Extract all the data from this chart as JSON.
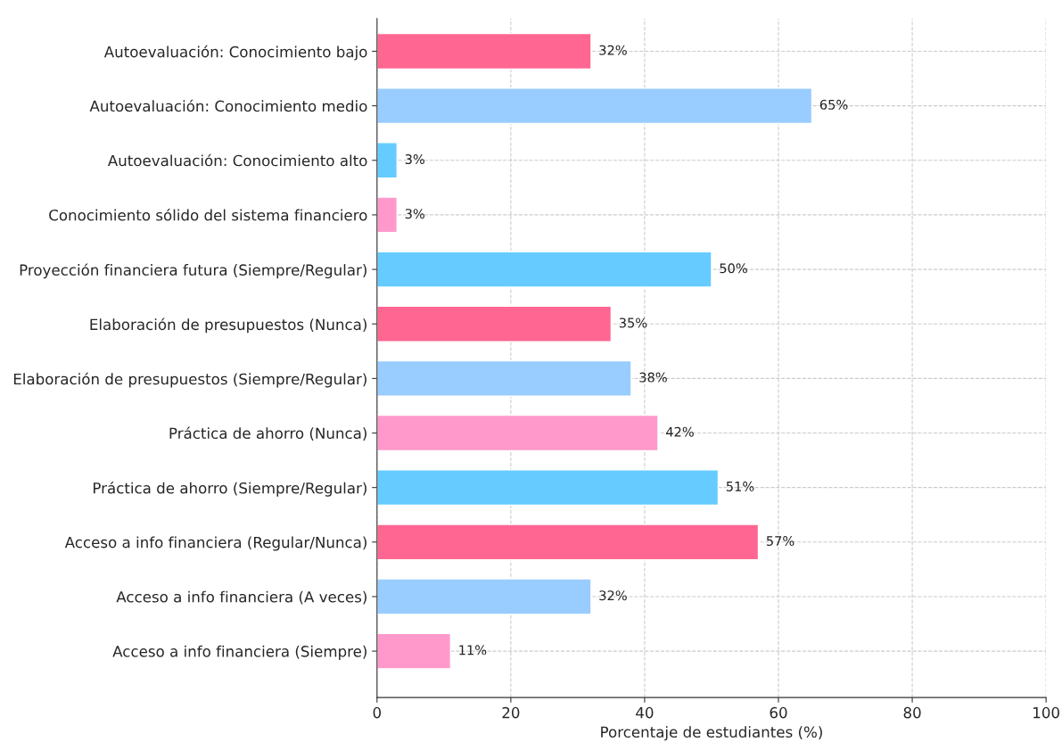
{
  "chart_data": {
    "type": "bar",
    "orientation": "horizontal",
    "categories": [
      "Autoevaluación: Conocimiento bajo",
      "Autoevaluación: Conocimiento medio",
      "Autoevaluación: Conocimiento alto",
      "Conocimiento sólido del sistema financiero",
      "Proyección financiera futura (Siempre/Regular)",
      "Elaboración de presupuestos (Nunca)",
      "Elaboración de presupuestos (Siempre/Regular)",
      "Práctica de ahorro (Nunca)",
      "Práctica de ahorro (Siempre/Regular)",
      "Acceso a info financiera (Regular/Nunca)",
      "Acceso a info financiera (A veces)",
      "Acceso a info financiera (Siempre)"
    ],
    "values": [
      32,
      65,
      3,
      3,
      50,
      35,
      38,
      42,
      51,
      57,
      32,
      11
    ],
    "value_labels": [
      "32%",
      "65%",
      "3%",
      "3%",
      "50%",
      "35%",
      "38%",
      "42%",
      "51%",
      "57%",
      "32%",
      "11%"
    ],
    "colors": [
      "#ff6692",
      "#99ccff",
      "#66ccff",
      "#ff99cc",
      "#66ccff",
      "#ff6692",
      "#99ccff",
      "#ff99cc",
      "#66ccff",
      "#ff6692",
      "#99ccff",
      "#ff99cc"
    ],
    "xlabel": "Porcentaje de estudiantes (%)",
    "xlim": [
      0,
      100
    ],
    "xticks": [
      0,
      20,
      40,
      60,
      80,
      100
    ],
    "grid": true
  }
}
